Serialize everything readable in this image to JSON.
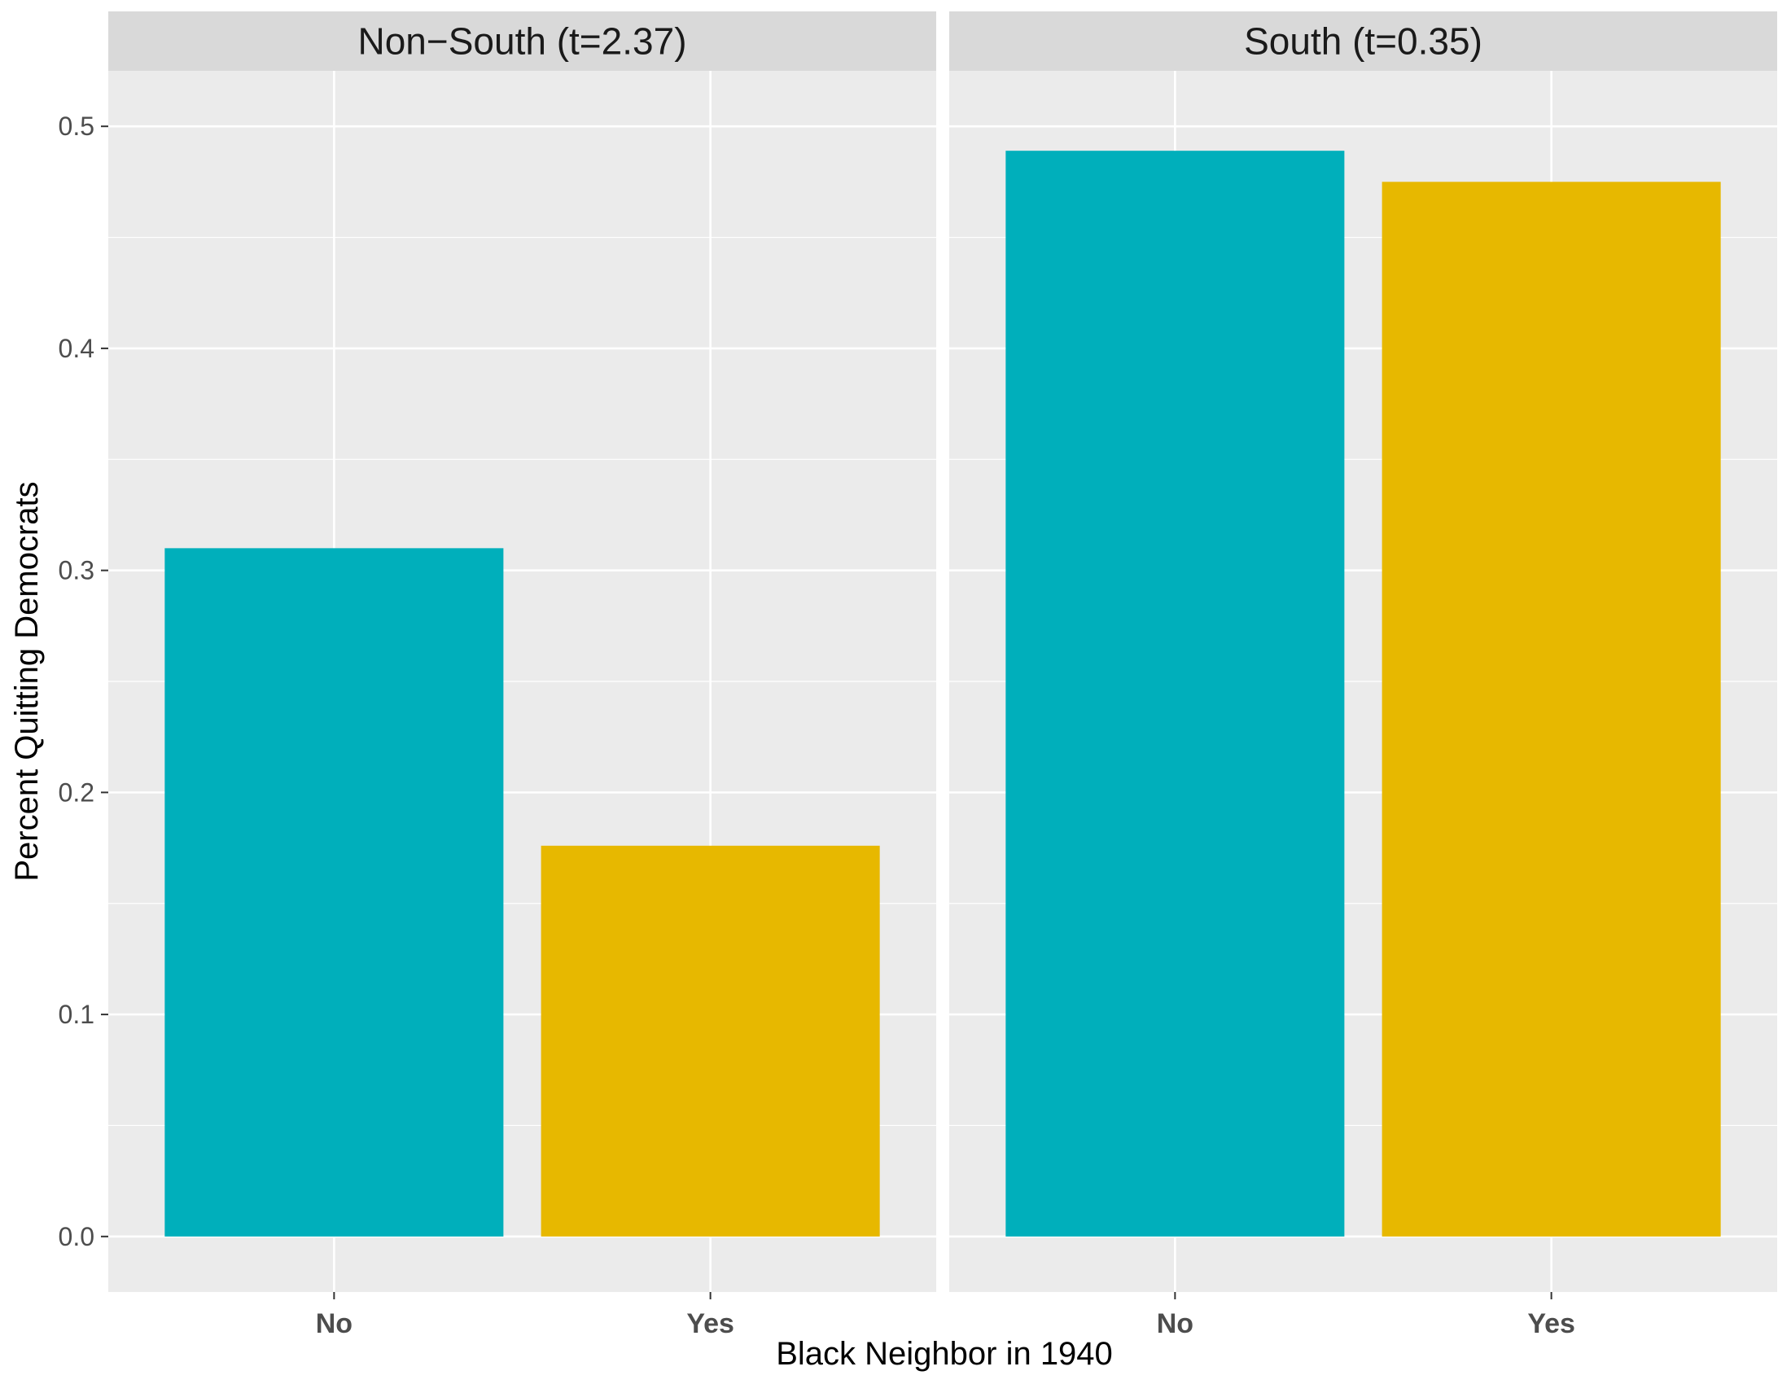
{
  "chart_data": {
    "type": "bar",
    "xlabel": "Black Neighbor in 1940",
    "ylabel": "Percent Quitting Democrats",
    "ylim": [
      -0.025,
      0.525
    ],
    "y_ticks": [
      0.0,
      0.1,
      0.2,
      0.3,
      0.4,
      0.5
    ],
    "y_tick_labels": [
      "0.0",
      "0.1",
      "0.2",
      "0.3",
      "0.4",
      "0.5"
    ],
    "grid": true,
    "legend": "none",
    "colors": {
      "No": "#00AFBB",
      "Yes": "#E7B800",
      "panel_bg": "#EBEBEB",
      "strip_bg": "#D9D9D9",
      "grid": "#FFFFFF"
    },
    "panels": [
      {
        "label": "Non−South (t=2.37)",
        "categories": [
          "No",
          "Yes"
        ],
        "values": [
          0.31,
          0.176
        ]
      },
      {
        "label": "South (t=0.35)",
        "categories": [
          "No",
          "Yes"
        ],
        "values": [
          0.489,
          0.475
        ]
      }
    ]
  }
}
